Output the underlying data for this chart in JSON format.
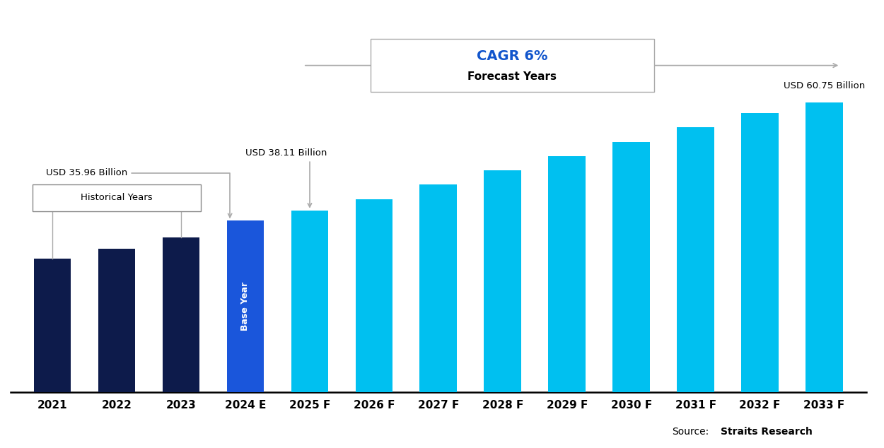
{
  "categories": [
    "2021",
    "2022",
    "2023",
    "2024 E",
    "2025 F",
    "2026 F",
    "2027 F",
    "2028 F",
    "2029 F",
    "2030 F",
    "2031 F",
    "2032 F",
    "2033 F"
  ],
  "values": [
    28.0,
    30.0,
    32.5,
    35.96,
    38.11,
    40.5,
    43.5,
    46.5,
    49.5,
    52.5,
    55.5,
    58.5,
    60.75
  ],
  "bar_colors": [
    "#0d1b4b",
    "#0d1b4b",
    "#0d1b4b",
    "#1a56db",
    "#00c0f0",
    "#00c0f0",
    "#00c0f0",
    "#00c0f0",
    "#00c0f0",
    "#00c0f0",
    "#00c0f0",
    "#00c0f0",
    "#00c0f0"
  ],
  "bg_color": "#ffffff",
  "annotation_35_label": "USD 35.96 Billion",
  "annotation_38_label": "USD 38.11 Billion",
  "annotation_last_label": "USD 60.75 Billion",
  "historical_label": "Historical Years",
  "base_year_label": "Base Year",
  "cagr_label": "CAGR 6%",
  "forecast_label": "Forecast Years",
  "source_plain": "Source:",
  "source_bold": "Straits Research",
  "ylim": [
    0,
    80
  ],
  "figsize": [
    12.5,
    6.34
  ],
  "bar_width": 0.58
}
